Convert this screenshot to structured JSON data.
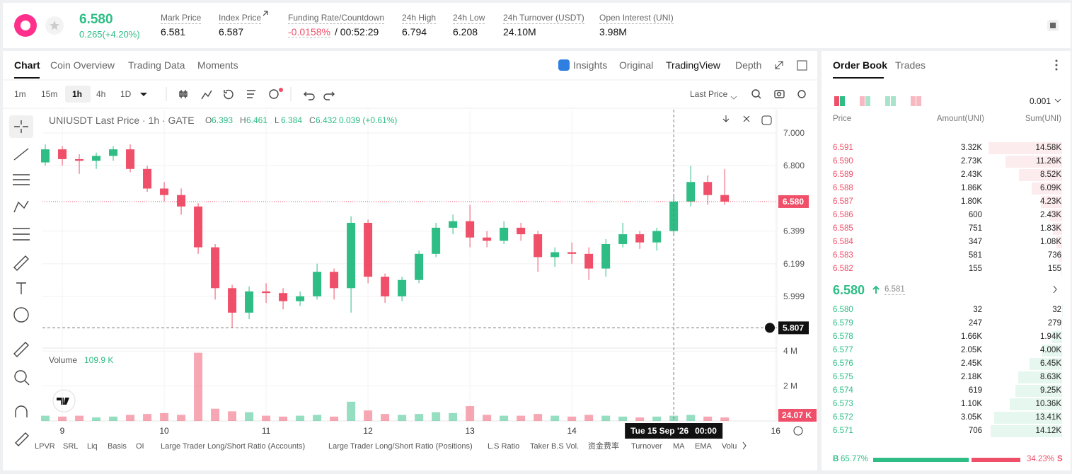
{
  "header": {
    "price": "6.580",
    "change": "0.265(+4.20%)",
    "stats": [
      {
        "label": "Mark Price",
        "value": "6.581"
      },
      {
        "label": "Index Price",
        "value": "6.587"
      },
      {
        "label": "Funding Rate/Countdown",
        "value": "-0.0158%",
        "countdown": "/ 00:52:29"
      },
      {
        "label": "24h High",
        "value": "6.794"
      },
      {
        "label": "24h Low",
        "value": "6.208"
      },
      {
        "label": "24h Turnover (USDT)",
        "value": "24.10M"
      },
      {
        "label": "Open Interest (UNI)",
        "value": "3.98M"
      }
    ]
  },
  "tabs": [
    "Chart",
    "Coin Overview",
    "Trading Data",
    "Moments"
  ],
  "view_tabs": [
    "Insights",
    "Original",
    "TradingView",
    "Depth"
  ],
  "intervals": [
    "1m",
    "15m",
    "1h",
    "4h",
    "1D"
  ],
  "price_type": "Last Price",
  "chart_data": {
    "type": "candlestick",
    "title": "UNIUSDT Last Price · 1h · GATE",
    "ohlc": [
      {
        "key": "O",
        "value": "6.393"
      },
      {
        "key": "H",
        "value": "6.461"
      },
      {
        "key": "L",
        "value": "6.384"
      },
      {
        "key": "C",
        "value": "6.432"
      }
    ],
    "change": "0.039 (+0.61%)",
    "up_color": "#2ebd85",
    "down_color": "#ef4f68",
    "x": [
      -4,
      0,
      4,
      8,
      12,
      16,
      20,
      24,
      28,
      32,
      36,
      40,
      44,
      48,
      52,
      56,
      60,
      64,
      68,
      72,
      76,
      80,
      84,
      88,
      92,
      96,
      100,
      104,
      108,
      112,
      116,
      120,
      124,
      128,
      132,
      136,
      140,
      144,
      148,
      152,
      156
    ],
    "open": [
      6.82,
      6.9,
      6.84,
      6.83,
      6.86,
      6.9,
      6.78,
      6.66,
      6.62,
      6.55,
      6.3,
      6.05,
      5.9,
      6.03,
      6.02,
      5.97,
      6.0,
      6.15,
      6.05,
      6.45,
      6.12,
      6.0,
      6.1,
      6.26,
      6.42,
      6.46,
      6.36,
      6.34,
      6.42,
      6.38,
      6.24,
      6.27,
      6.26,
      6.17,
      6.32,
      6.38,
      6.33,
      6.4,
      6.58,
      6.7,
      6.62
    ],
    "high": [
      6.93,
      6.92,
      6.87,
      6.88,
      6.92,
      6.93,
      6.8,
      6.7,
      6.66,
      6.57,
      6.32,
      6.07,
      6.06,
      6.08,
      6.05,
      6.03,
      6.2,
      6.17,
      6.49,
      6.47,
      6.14,
      6.12,
      6.28,
      6.45,
      6.5,
      6.56,
      6.4,
      6.46,
      6.45,
      6.4,
      6.3,
      6.33,
      6.3,
      6.35,
      6.45,
      6.4,
      6.42,
      6.62,
      6.8,
      6.74,
      6.78
    ],
    "low": [
      6.8,
      6.8,
      6.75,
      6.78,
      6.83,
      6.76,
      6.64,
      6.58,
      6.5,
      6.26,
      5.98,
      5.807,
      5.86,
      5.96,
      5.92,
      5.94,
      5.98,
      5.98,
      5.9,
      6.08,
      5.96,
      5.97,
      6.08,
      6.24,
      6.38,
      6.3,
      6.3,
      6.32,
      6.34,
      6.15,
      6.18,
      6.2,
      6.1,
      6.12,
      6.3,
      6.29,
      6.28,
      6.38,
      6.55,
      6.56,
      6.56
    ],
    "close": [
      6.9,
      6.84,
      6.83,
      6.86,
      6.9,
      6.78,
      6.66,
      6.62,
      6.55,
      6.3,
      6.05,
      5.9,
      6.03,
      6.02,
      5.97,
      6.0,
      6.15,
      6.05,
      6.45,
      6.12,
      6.0,
      6.1,
      6.26,
      6.42,
      6.46,
      6.36,
      6.34,
      6.42,
      6.38,
      6.24,
      6.27,
      6.26,
      6.17,
      6.32,
      6.38,
      6.33,
      6.4,
      6.58,
      6.7,
      6.62,
      6.58
    ],
    "volume": [
      300000,
      250000,
      300000,
      200000,
      250000,
      350000,
      400000,
      450000,
      350000,
      3900000,
      700000,
      550000,
      500000,
      300000,
      250000,
      300000,
      350000,
      250000,
      1100000,
      600000,
      400000,
      350000,
      400000,
      500000,
      450000,
      850000,
      350000,
      300000,
      300000,
      400000,
      300000,
      250000,
      350000,
      300000,
      250000,
      200000,
      250000,
      300000,
      350000,
      250000,
      200000
    ],
    "xlim": [
      -4.67,
      168.3
    ],
    "xticks": [
      {
        "value": 0,
        "label": "9"
      },
      {
        "value": 24,
        "label": "10"
      },
      {
        "value": 48,
        "label": "11"
      },
      {
        "value": 72,
        "label": "12"
      },
      {
        "value": 96,
        "label": "13"
      },
      {
        "value": 120,
        "label": "14"
      },
      {
        "value": 168,
        "label": "16"
      }
    ],
    "ylim": [
      5.683,
      7.143
    ],
    "yticks": [
      {
        "value": 7,
        "label": "7.000"
      },
      {
        "value": 6.8,
        "label": "6.800"
      },
      {
        "value": 6.399,
        "label": "6.399"
      },
      {
        "value": 6.199,
        "label": "6.199"
      },
      {
        "value": 5.999,
        "label": "5.999"
      }
    ],
    "volume_ylim": [
      0,
      4170000
    ],
    "volume_yticks": [
      {
        "value": 4000000,
        "label": "4 M"
      },
      {
        "value": 2000000,
        "label": "2 M"
      }
    ],
    "grid": true,
    "last_price": {
      "value": 6.58,
      "label": "6.580"
    },
    "crosshair": {
      "x": 144,
      "price": {
        "value": 5.807,
        "label": "5.807"
      },
      "date": "Tue 15 Sep '26",
      "time": "00:00"
    },
    "volume_title": "Volume",
    "volume_value": "109.9 K",
    "last_volume": "24.07 K"
  },
  "indicators": [
    "LPVR",
    "SRL",
    "Liq",
    "Basis",
    "OI",
    "Large Trader Long/Short Ratio (Accounts)",
    "Large Trader Long/Short Ratio (Positions)",
    "L.S Ratio",
    "Taker B.S Vol.",
    "资金费率",
    "Turnover",
    "MA",
    "EMA",
    "Volu"
  ],
  "order_book": {
    "tabs": [
      "Order Book",
      "Trades"
    ],
    "precision": "0.001",
    "columns": [
      "Price",
      "Amount(UNI)",
      "Sum(UNI)"
    ],
    "asks": [
      {
        "price": "6.591",
        "amount": "3.32K",
        "sum": {
          "value": 14580,
          "label": "14.58K"
        }
      },
      {
        "price": "6.590",
        "amount": "2.73K",
        "sum": {
          "value": 11260,
          "label": "11.26K"
        }
      },
      {
        "price": "6.589",
        "amount": "2.43K",
        "sum": {
          "value": 8520,
          "label": "8.52K"
        }
      },
      {
        "price": "6.588",
        "amount": "1.86K",
        "sum": {
          "value": 6090,
          "label": "6.09K"
        }
      },
      {
        "price": "6.587",
        "amount": "1.80K",
        "sum": {
          "value": 4230,
          "label": "4.23K"
        }
      },
      {
        "price": "6.586",
        "amount": "600",
        "sum": {
          "value": 2430,
          "label": "2.43K"
        }
      },
      {
        "price": "6.585",
        "amount": "751",
        "sum": {
          "value": 1830,
          "label": "1.83K"
        }
      },
      {
        "price": "6.584",
        "amount": "347",
        "sum": {
          "value": 1080,
          "label": "1.08K"
        }
      },
      {
        "price": "6.583",
        "amount": "581",
        "sum": 736
      },
      {
        "price": "6.582",
        "amount": "155",
        "sum": 155
      }
    ],
    "last_price": "6.580",
    "mark_price": "6.581",
    "bids": [
      {
        "price": "6.580",
        "amount": "32",
        "sum": 32
      },
      {
        "price": "6.579",
        "amount": "247",
        "sum": 279
      },
      {
        "price": "6.578",
        "amount": "1.66K",
        "sum": {
          "value": 1940,
          "label": "1.94K"
        }
      },
      {
        "price": "6.577",
        "amount": "2.05K",
        "sum": {
          "value": 4000,
          "label": "4.00K"
        }
      },
      {
        "price": "6.576",
        "amount": "2.45K",
        "sum": {
          "value": 6450,
          "label": "6.45K"
        }
      },
      {
        "price": "6.575",
        "amount": "2.18K",
        "sum": {
          "value": 8630,
          "label": "8.63K"
        }
      },
      {
        "price": "6.574",
        "amount": "619",
        "sum": {
          "value": 9250,
          "label": "9.25K"
        }
      },
      {
        "price": "6.573",
        "amount": "1.10K",
        "sum": {
          "value": 10360,
          "label": "10.36K"
        }
      },
      {
        "price": "6.572",
        "amount": "3.05K",
        "sum": {
          "value": 13410,
          "label": "13.41K"
        }
      },
      {
        "price": "6.571",
        "amount": "706",
        "sum": {
          "value": 14120,
          "label": "14.12K"
        }
      }
    ],
    "ratio": {
      "buy_label": "B",
      "buy": {
        "value": 65.77,
        "label": "65.77%"
      },
      "sell": {
        "value": 34.23,
        "label": "34.23%"
      },
      "sell_label": "S"
    }
  }
}
